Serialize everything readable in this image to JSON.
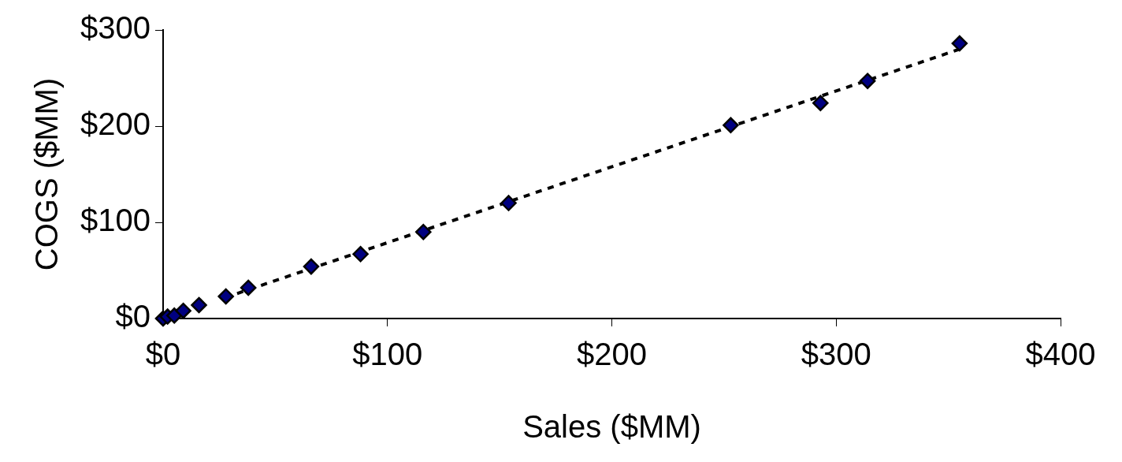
{
  "chart_data": {
    "type": "scatter",
    "xlabel": "Sales ($MM)",
    "ylabel": "COGS ($MM)",
    "xlim": [
      0,
      400
    ],
    "xticks": [
      {
        "value": 0,
        "label": "$0"
      },
      {
        "value": 100,
        "label": "$100"
      },
      {
        "value": 200,
        "label": "$200"
      },
      {
        "value": 300,
        "label": "$300"
      },
      {
        "value": 400,
        "label": "$400"
      }
    ],
    "ylim": [
      0,
      300
    ],
    "yticks": [
      {
        "value": 0,
        "label": "$0"
      },
      {
        "value": 100,
        "label": "$100"
      },
      {
        "value": 200,
        "label": "$200"
      },
      {
        "value": 300,
        "label": "$300"
      }
    ],
    "grid": false,
    "legend": false,
    "marker": "diamond",
    "series": [
      {
        "type": "scatter",
        "color": "#000080",
        "x": [
          0,
          2,
          5,
          9,
          16,
          28,
          38,
          66,
          88,
          116,
          154,
          253,
          293,
          314,
          355
        ],
        "values": [
          0,
          2,
          3,
          8,
          14,
          23,
          32,
          54,
          67,
          90,
          120,
          201,
          224,
          247,
          286
        ]
      },
      {
        "type": "line",
        "color": "#000000",
        "line_style": "dashed",
        "marker": "none",
        "x": [
          33,
          355
        ],
        "values": [
          26,
          280
        ]
      }
    ]
  }
}
